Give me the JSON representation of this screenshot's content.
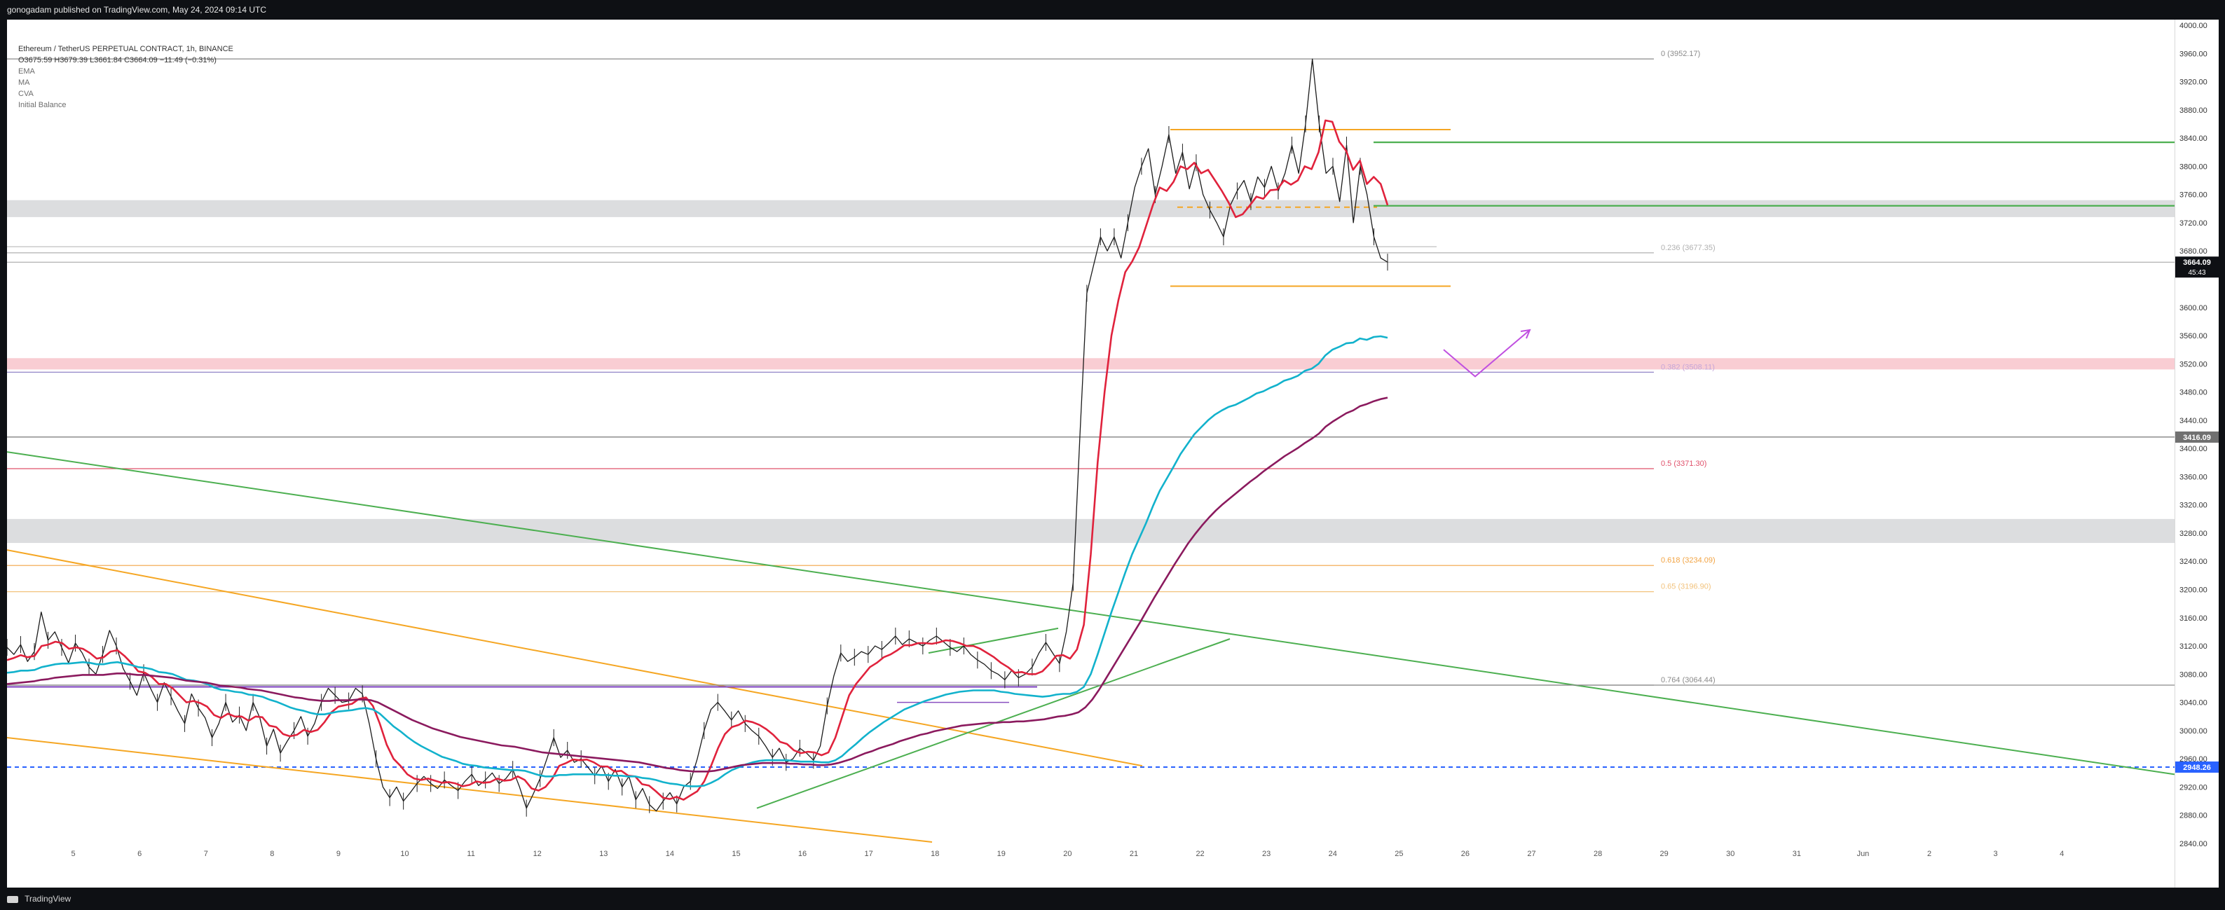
{
  "header": {
    "publish_line": "gonogadam published on TradingView.com, May 24, 2024 09:14 UTC"
  },
  "legend": {
    "symbol": "Ethereum / TetherUS PERPETUAL CONTRACT, 1h, BINANCE",
    "ohlc": "O3675.59 H3679.39 L3661.84 C3664.09 −11.49 (−0.31%)",
    "indicators": [
      "EMA",
      "MA",
      "CVA",
      "Initial Balance"
    ]
  },
  "footer": {
    "brand": "TradingView"
  },
  "chart_data": {
    "type": "line",
    "ylim": [
      2840,
      4000
    ],
    "yticks": [
      4000,
      3960,
      3920,
      3880,
      3840,
      3800,
      3760,
      3720,
      3680,
      3600,
      3560,
      3520,
      3480,
      3440,
      3400,
      3360,
      3320,
      3280,
      3240,
      3200,
      3160,
      3120,
      3080,
      3040,
      3000,
      2960,
      2920,
      2880,
      2840
    ],
    "xticks": [
      "5",
      "6",
      "7",
      "8",
      "9",
      "10",
      "11",
      "12",
      "13",
      "14",
      "15",
      "16",
      "17",
      "18",
      "19",
      "20",
      "21",
      "22",
      "23",
      "24",
      "25",
      "26",
      "27",
      "28",
      "29",
      "30",
      "31",
      "Jun",
      "2",
      "3",
      "4"
    ],
    "x_range_days": [
      4,
      36.7
    ],
    "last_price": {
      "value": "3664.09",
      "countdown": "45:43",
      "y": 3664.09,
      "color": "#0e1014"
    },
    "level_tags": [
      {
        "value": "3416.09",
        "y": 3416.09,
        "color": "#707070"
      },
      {
        "value": "2948.26",
        "y": 2948.26,
        "color": "#2962ff"
      }
    ],
    "fib_levels": [
      {
        "label": "0 (3952.17)",
        "y": 3952.17,
        "color": "#8a8a8a"
      },
      {
        "label": "0.236 (3677.35)",
        "y": 3677.35,
        "color": "#b0b0b0"
      },
      {
        "label": "0.382 (3508.11)",
        "y": 3508.11,
        "color": "#c6a6d8"
      },
      {
        "label": "0.5 (3371.30)",
        "y": 3371.3,
        "color": "#e0506a"
      },
      {
        "label": "0.618 (3234.09)",
        "y": 3234.09,
        "color": "#f2a444"
      },
      {
        "label": "0.65 (3196.90)",
        "y": 3196.9,
        "color": "#f2c27c"
      },
      {
        "label": "0.764 (3064.44)",
        "y": 3064.44,
        "color": "#8a8a8a"
      }
    ],
    "zones": [
      {
        "y_top": 3752,
        "y_bottom": 3728,
        "color": "#dcdddf"
      },
      {
        "y_top": 3528,
        "y_bottom": 3512,
        "color": "#f9cdd3"
      },
      {
        "y_top": 3300,
        "y_bottom": 3266,
        "color": "#dcdddf"
      }
    ],
    "series": [
      {
        "color": "#1c1c1c",
        "y": [
          3118,
          3108,
          3122,
          3098,
          3112,
          3168,
          3128,
          3140,
          3118,
          3096,
          3124,
          3110,
          3090,
          3080,
          3108,
          3142,
          3120,
          3088,
          3070,
          3050,
          3082,
          3060,
          3040,
          3068,
          3048,
          3028,
          3010,
          3052,
          3032,
          3018,
          2990,
          3010,
          3040,
          3012,
          3022,
          3000,
          3040,
          3018,
          2978,
          3002,
          2968,
          2985,
          3000,
          3020,
          2992,
          3010,
          3040,
          3060,
          3050,
          3040,
          3042,
          3060,
          3052,
          3010,
          2960,
          2920,
          2905,
          2920,
          2900,
          2912,
          2925,
          2935,
          2925,
          2918,
          2930,
          2922,
          2915,
          2928,
          2938,
          2922,
          2930,
          2940,
          2925,
          2932,
          2945,
          2920,
          2890,
          2910,
          2932,
          2960,
          2990,
          2962,
          2972,
          2955,
          2960,
          2948,
          2936,
          2950,
          2928,
          2945,
          2920,
          2935,
          2902,
          2918,
          2895,
          2886,
          2900,
          2912,
          2896,
          2920,
          2928,
          2960,
          3000,
          3030,
          3040,
          3028,
          3015,
          3028,
          3010,
          3000,
          2992,
          2978,
          2962,
          2975,
          2955,
          2960,
          2975,
          2968,
          2958,
          2978,
          3035,
          3078,
          3110,
          3098,
          3104,
          3112,
          3108,
          3120,
          3115,
          3124,
          3134,
          3122,
          3130,
          3125,
          3120,
          3128,
          3134,
          3126,
          3118,
          3112,
          3120,
          3108,
          3100,
          3094,
          3085,
          3080,
          3072,
          3085,
          3075,
          3080,
          3090,
          3110,
          3125,
          3110,
          3095,
          3140,
          3210,
          3420,
          3620,
          3660,
          3700,
          3680,
          3700,
          3670,
          3720,
          3770,
          3800,
          3825,
          3760,
          3800,
          3845,
          3790,
          3820,
          3768,
          3805,
          3760,
          3738,
          3720,
          3700,
          3745,
          3765,
          3780,
          3750,
          3785,
          3770,
          3800,
          3765,
          3790,
          3830,
          3790,
          3860,
          3952,
          3860,
          3790,
          3800,
          3750,
          3830,
          3720,
          3800,
          3760,
          3700,
          3670,
          3664.09
        ]
      },
      {
        "color": "#e0223c",
        "y": [
          3100,
          3103,
          3107,
          3104,
          3106,
          3120,
          3122,
          3126,
          3124,
          3116,
          3118,
          3116,
          3110,
          3102,
          3104,
          3112,
          3114,
          3106,
          3096,
          3084,
          3082,
          3076,
          3066,
          3066,
          3060,
          3050,
          3040,
          3042,
          3039,
          3034,
          3022,
          3018,
          3024,
          3020,
          3020,
          3014,
          3020,
          3019,
          3007,
          3005,
          2995,
          2992,
          2994,
          3001,
          2998,
          3001,
          3012,
          3026,
          3034,
          3036,
          3038,
          3045,
          3047,
          3035,
          3010,
          2980,
          2960,
          2950,
          2938,
          2932,
          2930,
          2932,
          2929,
          2926,
          2927,
          2925,
          2921,
          2923,
          2928,
          2926,
          2927,
          2932,
          2929,
          2930,
          2935,
          2930,
          2918,
          2915,
          2920,
          2932,
          2950,
          2954,
          2959,
          2958,
          2959,
          2955,
          2949,
          2949,
          2942,
          2943,
          2936,
          2935,
          2924,
          2922,
          2914,
          2905,
          2903,
          2906,
          2902,
          2908,
          2914,
          2928,
          2950,
          2975,
          2995,
          3005,
          3008,
          3014,
          3012,
          3008,
          3002,
          2994,
          2984,
          2981,
          2972,
          2968,
          2970,
          2969,
          2965,
          2969,
          2990,
          3020,
          3050,
          3066,
          3078,
          3090,
          3096,
          3104,
          3108,
          3114,
          3121,
          3121,
          3124,
          3124,
          3123,
          3125,
          3128,
          3127,
          3124,
          3120,
          3120,
          3116,
          3110,
          3104,
          3096,
          3090,
          3082,
          3083,
          3080,
          3080,
          3084,
          3094,
          3106,
          3107,
          3102,
          3115,
          3150,
          3250,
          3380,
          3480,
          3560,
          3610,
          3650,
          3665,
          3685,
          3715,
          3745,
          3770,
          3765,
          3778,
          3800,
          3796,
          3805,
          3790,
          3795,
          3780,
          3765,
          3748,
          3728,
          3732,
          3744,
          3757,
          3754,
          3766,
          3767,
          3780,
          3774,
          3780,
          3800,
          3796,
          3820,
          3865,
          3863,
          3835,
          3822,
          3795,
          3808,
          3775,
          3785,
          3775,
          3745
        ]
      },
      {
        "color": "#12b2cc",
        "y": [
          3082,
          3083,
          3085,
          3085,
          3086,
          3090,
          3092,
          3094,
          3095,
          3095,
          3096,
          3097,
          3096,
          3094,
          3094,
          3096,
          3097,
          3095,
          3093,
          3090,
          3089,
          3087,
          3083,
          3082,
          3080,
          3076,
          3072,
          3071,
          3069,
          3066,
          3061,
          3058,
          3057,
          3055,
          3054,
          3051,
          3050,
          3048,
          3044,
          3041,
          3037,
          3033,
          3030,
          3028,
          3025,
          3023,
          3023,
          3025,
          3027,
          3028,
          3029,
          3031,
          3032,
          3030,
          3024,
          3015,
          3006,
          2999,
          2991,
          2984,
          2978,
          2973,
          2968,
          2963,
          2960,
          2957,
          2953,
          2951,
          2950,
          2948,
          2947,
          2946,
          2945,
          2944,
          2944,
          2943,
          2940,
          2937,
          2935,
          2935,
          2937,
          2937,
          2938,
          2938,
          2938,
          2938,
          2937,
          2937,
          2936,
          2936,
          2935,
          2935,
          2933,
          2932,
          2930,
          2927,
          2925,
          2924,
          2922,
          2921,
          2921,
          2922,
          2926,
          2931,
          2938,
          2944,
          2948,
          2952,
          2955,
          2957,
          2958,
          2958,
          2958,
          2958,
          2957,
          2956,
          2956,
          2956,
          2955,
          2955,
          2958,
          2964,
          2973,
          2981,
          2990,
          2998,
          3005,
          3012,
          3018,
          3024,
          3030,
          3034,
          3038,
          3042,
          3045,
          3048,
          3051,
          3053,
          3055,
          3056,
          3057,
          3057,
          3057,
          3057,
          3055,
          3054,
          3052,
          3051,
          3050,
          3049,
          3048,
          3049,
          3051,
          3052,
          3052,
          3055,
          3062,
          3080,
          3108,
          3138,
          3168,
          3196,
          3224,
          3250,
          3272,
          3294,
          3318,
          3340,
          3357,
          3374,
          3392,
          3406,
          3420,
          3430,
          3440,
          3448,
          3454,
          3459,
          3462,
          3467,
          3472,
          3478,
          3481,
          3486,
          3490,
          3496,
          3499,
          3503,
          3510,
          3513,
          3520,
          3532,
          3540,
          3544,
          3549,
          3550,
          3556,
          3554,
          3558,
          3559,
          3557
        ]
      },
      {
        "color": "#8b1a5e",
        "y": [
          3066,
          3067,
          3068,
          3069,
          3070,
          3072,
          3073,
          3075,
          3076,
          3077,
          3078,
          3079,
          3079,
          3079,
          3079,
          3080,
          3081,
          3081,
          3080,
          3079,
          3079,
          3078,
          3077,
          3076,
          3075,
          3073,
          3071,
          3070,
          3069,
          3068,
          3066,
          3064,
          3063,
          3062,
          3061,
          3059,
          3058,
          3057,
          3055,
          3053,
          3051,
          3049,
          3047,
          3046,
          3044,
          3043,
          3042,
          3042,
          3043,
          3043,
          3043,
          3044,
          3044,
          3043,
          3040,
          3035,
          3030,
          3025,
          3020,
          3015,
          3011,
          3007,
          3003,
          3000,
          2997,
          2994,
          2991,
          2989,
          2987,
          2985,
          2983,
          2981,
          2979,
          2978,
          2977,
          2975,
          2973,
          2971,
          2969,
          2968,
          2967,
          2966,
          2965,
          2964,
          2963,
          2962,
          2961,
          2960,
          2959,
          2958,
          2957,
          2956,
          2955,
          2953,
          2951,
          2949,
          2947,
          2946,
          2944,
          2943,
          2942,
          2942,
          2942,
          2943,
          2945,
          2947,
          2949,
          2951,
          2952,
          2953,
          2954,
          2954,
          2954,
          2954,
          2953,
          2953,
          2952,
          2952,
          2951,
          2951,
          2952,
          2954,
          2957,
          2960,
          2964,
          2968,
          2971,
          2975,
          2978,
          2981,
          2985,
          2988,
          2991,
          2994,
          2996,
          2999,
          3001,
          3003,
          3005,
          3007,
          3008,
          3009,
          3010,
          3011,
          3011,
          3012,
          3012,
          3013,
          3013,
          3014,
          3015,
          3016,
          3018,
          3020,
          3021,
          3023,
          3026,
          3033,
          3044,
          3058,
          3074,
          3090,
          3106,
          3122,
          3138,
          3154,
          3171,
          3188,
          3204,
          3220,
          3236,
          3251,
          3266,
          3279,
          3291,
          3302,
          3312,
          3321,
          3329,
          3337,
          3345,
          3353,
          3360,
          3368,
          3375,
          3382,
          3389,
          3395,
          3401,
          3408,
          3414,
          3421,
          3431,
          3438,
          3444,
          3450,
          3454,
          3460,
          3463,
          3467,
          3470,
          3472
        ]
      }
    ]
  }
}
